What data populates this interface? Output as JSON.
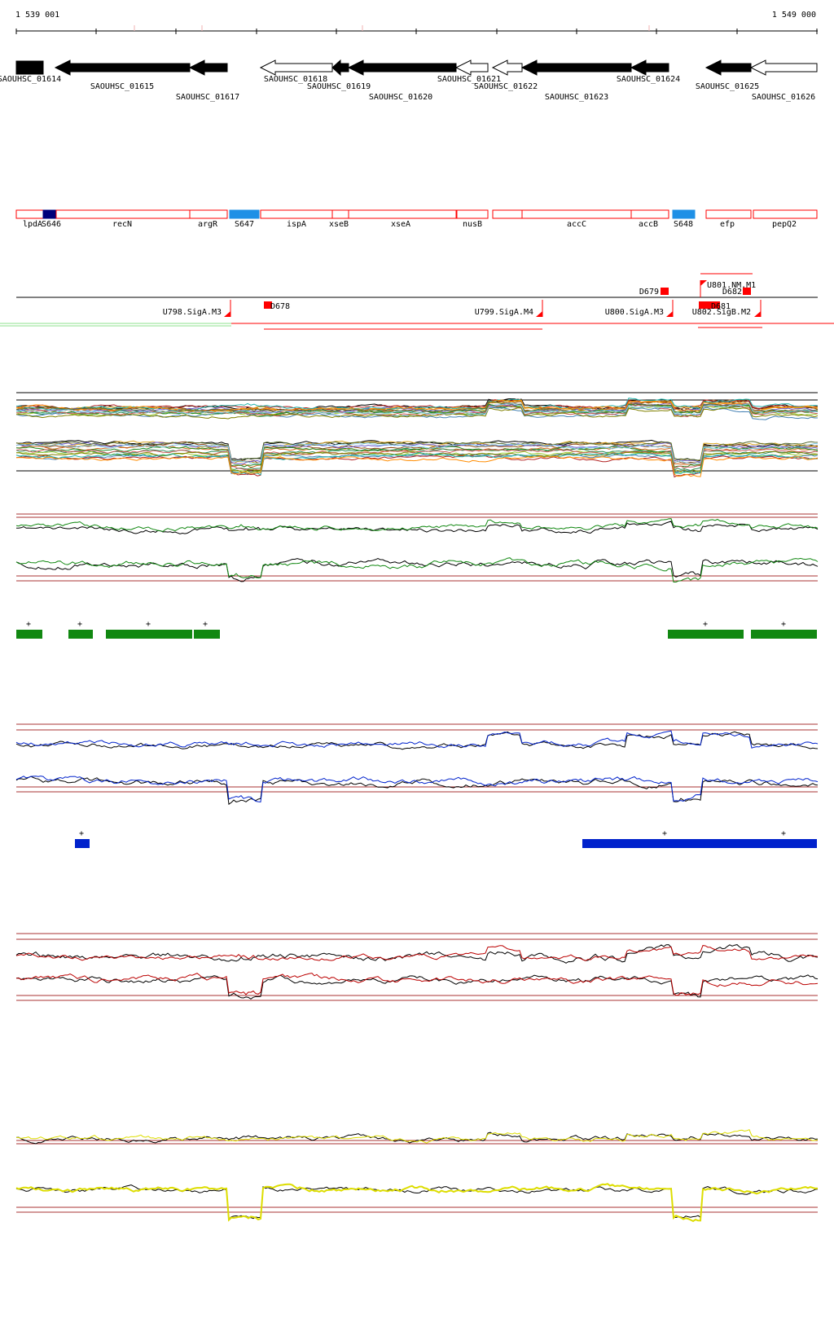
{
  "coordinates": {
    "start": "1 539 001",
    "end": "1 549 000"
  },
  "colors": {
    "gene_filled": "#000000",
    "gene_open": "#ffffff",
    "operon_outline": "#ff0000",
    "small_rna": "#1e90e6",
    "small_rna_dark": "#00007a",
    "promoter": "#ff0000",
    "track_green": "#118811",
    "track_blue": "#0022cc",
    "track_red": "#bb0000",
    "track_yellow": "#dddd00",
    "guide_line": "#aa3333"
  },
  "genes": [
    {
      "id": "g01614",
      "label": "SAOUHSC_01614",
      "filled": true,
      "strand": "+"
    },
    {
      "id": "g01615",
      "label": "SAOUHSC_01615",
      "filled": true,
      "strand": "-"
    },
    {
      "id": "g01617",
      "label": "SAOUHSC_01617",
      "filled": true,
      "strand": "-"
    },
    {
      "id": "g01618",
      "label": "SAOUHSC_01618",
      "filled": false,
      "strand": "-"
    },
    {
      "id": "g01619",
      "label": "SAOUHSC_01619",
      "filled": true,
      "strand": "-"
    },
    {
      "id": "g01620",
      "label": "SAOUHSC_01620",
      "filled": true,
      "strand": "-"
    },
    {
      "id": "g01621",
      "label": "SAOUHSC_01621",
      "filled": false,
      "strand": "-"
    },
    {
      "id": "g01622",
      "label": "SAOUHSC_01622",
      "filled": false,
      "strand": "-"
    },
    {
      "id": "g01623",
      "label": "SAOUHSC_01623",
      "filled": true,
      "strand": "-"
    },
    {
      "id": "g01624",
      "label": "SAOUHSC_01624",
      "filled": true,
      "strand": "-"
    },
    {
      "id": "g01625",
      "label": "SAOUHSC_01625",
      "filled": true,
      "strand": "-"
    },
    {
      "id": "g01626",
      "label": "SAOUHSC_01626",
      "filled": false,
      "strand": "-"
    }
  ],
  "operon_segments": [
    {
      "label": "lpdA",
      "type": "outline"
    },
    {
      "label": "S646",
      "type": "small-rna-dark"
    },
    {
      "label": "recN",
      "type": "outline"
    },
    {
      "label": "argR",
      "type": "outline"
    },
    {
      "label": "S647",
      "type": "small-rna"
    },
    {
      "label": "ispA",
      "type": "outline"
    },
    {
      "label": "xseB",
      "type": "outline"
    },
    {
      "label": "xseA",
      "type": "outline"
    },
    {
      "label": "nusB",
      "type": "outline"
    },
    {
      "label": "",
      "type": "outline"
    },
    {
      "label": "accC",
      "type": "outline"
    },
    {
      "label": "accB",
      "type": "outline"
    },
    {
      "label": "S648",
      "type": "small-rna"
    },
    {
      "label": "efp",
      "type": "outline"
    },
    {
      "label": "pepQ2",
      "type": "outline"
    }
  ],
  "promoters": [
    {
      "label": "U798.SigA.M3"
    },
    {
      "label": "U799.SigA.M4"
    },
    {
      "label": "U800.SigA.M3"
    },
    {
      "label": "U801.NM.M1"
    },
    {
      "label": "U802.SigB.M2"
    }
  ],
  "down_markers": [
    {
      "label": "D678"
    },
    {
      "label": "D679"
    },
    {
      "label": "D681"
    },
    {
      "label": "D682"
    }
  ],
  "green_segments": [
    {
      "mark": "+"
    },
    {
      "mark": "+"
    },
    {
      "mark": "+"
    },
    {
      "mark": "+"
    },
    {
      "mark": "+"
    },
    {
      "mark": "+"
    }
  ],
  "blue_segments": [
    {
      "mark": "+"
    },
    {
      "mark": "+"
    },
    {
      "mark": "+"
    }
  ]
}
